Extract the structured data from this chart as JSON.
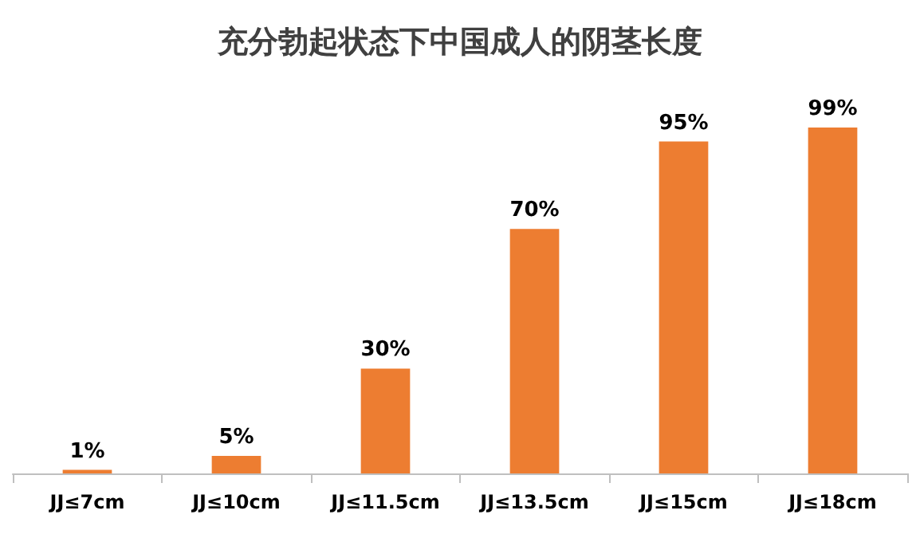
{
  "chart_data": {
    "type": "bar",
    "title": "充分勃起状态下中国成人的阴茎长度",
    "categories": [
      "JJ≤7cm",
      "JJ≤10cm",
      "JJ≤11.5cm",
      "JJ≤13.5cm",
      "JJ≤15cm",
      "JJ≤18cm"
    ],
    "values": [
      1,
      5,
      30,
      70,
      95,
      99
    ],
    "value_labels": [
      "1%",
      "5%",
      "30%",
      "70%",
      "95%",
      "99%"
    ],
    "color": "#ed7d31"
  }
}
